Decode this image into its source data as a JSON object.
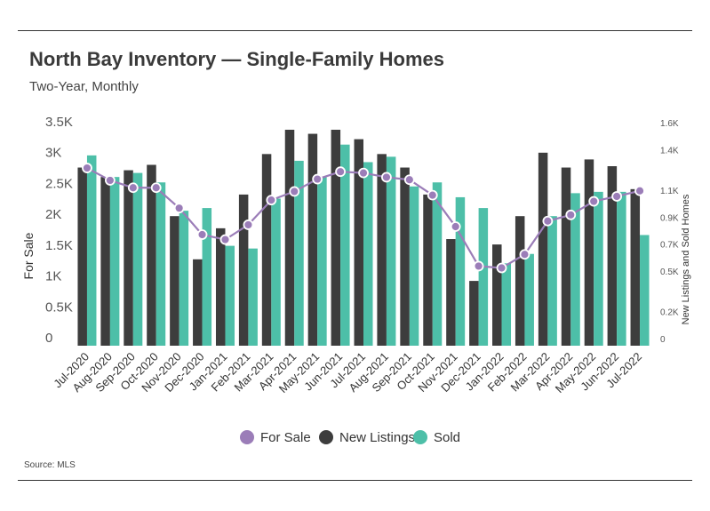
{
  "header": {
    "title": "North Bay Inventory — Single-Family Homes",
    "subtitle": "Two-Year, Monthly"
  },
  "footer": {
    "source": "Source:  MLS"
  },
  "colors": {
    "for_sale": "#9b7db8",
    "new_listings": "#3d3d3d",
    "sold": "#4dbfa8",
    "rule": "#333333"
  },
  "chart_data": {
    "type": "bar",
    "title": "North Bay Inventory — Single-Family Homes",
    "subtitle": "Two-Year, Monthly",
    "categories": [
      "Jul-2020",
      "Aug-2020",
      "Sep-2020",
      "Oct-2020",
      "Nov-2020",
      "Dec-2020",
      "Jan-2021",
      "Feb-2021",
      "Mar-2021",
      "Apr-2021",
      "May-2021",
      "Jun-2021",
      "Jul-2021",
      "Aug-2021",
      "Sep-2021",
      "Oct-2021",
      "Nov-2021",
      "Dec-2021",
      "Jan-2022",
      "Feb-2022",
      "Mar-2022",
      "Apr-2022",
      "May-2022",
      "Jun-2022",
      "Jul-2022"
    ],
    "left_axis": {
      "label": "For Sale",
      "ylim": [
        0,
        3500
      ],
      "ticks": [
        0,
        500,
        1000,
        1500,
        2000,
        2500,
        3000,
        3500
      ],
      "tick_labels": [
        "0",
        "0.5K",
        "1K",
        "1.5K",
        "2K",
        "2.5K",
        "3K",
        "3.5K"
      ]
    },
    "right_axis": {
      "label": "New Listings and Sold Homes",
      "ylim": [
        0,
        1600
      ],
      "ticks": [
        0,
        200,
        500,
        700,
        900,
        1100,
        1400,
        1600
      ],
      "tick_labels": [
        "0",
        "0.2K",
        "0.5K",
        "0.7K",
        "0.9K",
        "1.1K",
        "1.4K",
        "1.6K"
      ]
    },
    "series": [
      {
        "name": "For Sale",
        "type": "line",
        "axis": "left",
        "values": [
          2880,
          2680,
          2560,
          2560,
          2230,
          1800,
          1720,
          1960,
          2360,
          2500,
          2700,
          2820,
          2800,
          2730,
          2690,
          2440,
          1930,
          1290,
          1260,
          1480,
          2020,
          2120,
          2340,
          2420,
          2510
        ]
      },
      {
        "name": "New Listings",
        "type": "bar",
        "axis": "right",
        "values": [
          1320,
          1250,
          1300,
          1340,
          960,
          640,
          870,
          1120,
          1420,
          1600,
          1570,
          1600,
          1530,
          1420,
          1320,
          1120,
          790,
          480,
          750,
          960,
          1430,
          1320,
          1380,
          1330,
          1160
        ]
      },
      {
        "name": "Sold",
        "type": "bar",
        "axis": "right",
        "values": [
          1410,
          1250,
          1280,
          1210,
          1000,
          1020,
          740,
          720,
          1090,
          1370,
          1250,
          1490,
          1360,
          1400,
          1180,
          1210,
          1100,
          1020,
          610,
          680,
          960,
          1130,
          1140,
          1140,
          820
        ]
      }
    ],
    "legend": {
      "position": "bottom-center",
      "items": [
        "For Sale",
        "New Listings",
        "Sold"
      ]
    },
    "grid": false
  }
}
